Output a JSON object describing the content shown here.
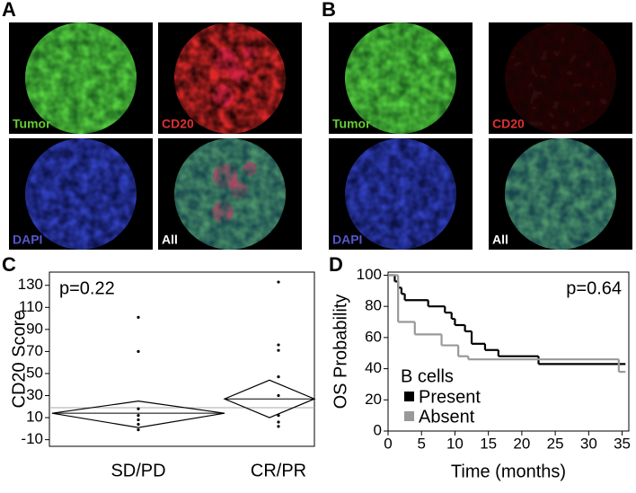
{
  "panels": [
    {
      "label": "A",
      "images": [
        "Tumor",
        "CD20",
        "DAPI",
        "All"
      ]
    },
    {
      "label": "B",
      "images": [
        "Tumor",
        "CD20",
        "DAPI",
        "All"
      ]
    }
  ],
  "chart_data": [
    {
      "type": "diamond",
      "label": "C",
      "annotation": "p=0.22",
      "y_label": "CD20 Score",
      "categories": [
        "SD/PD",
        "CR/PR"
      ],
      "points": [
        [
          101,
          70,
          18,
          12,
          8,
          4,
          -1
        ],
        [
          133,
          76,
          71,
          47,
          30,
          12,
          6,
          2
        ]
      ],
      "mean": [
        14,
        27
      ],
      "ci_low": [
        1,
        10
      ],
      "ci_high": [
        25,
        44
      ],
      "grand_mean": 19,
      "ylim": [
        -16,
        142
      ],
      "yticks": [
        -10,
        10,
        30,
        50,
        70,
        90,
        110,
        130
      ]
    },
    {
      "type": "step",
      "label": "D",
      "annotation": "p=0.64",
      "x_label": "Time (months)",
      "y_label": "OS Probability",
      "legend_title": "B cells",
      "series": [
        {
          "name": "Present",
          "color": "#000000",
          "x": [
            0,
            1,
            1.5,
            2,
            2.5,
            6,
            8.5,
            9.5,
            10,
            11.5,
            12.5,
            14.5,
            16.5,
            22.5
          ],
          "values": [
            100,
            96,
            92,
            88,
            84,
            80,
            76,
            72,
            68,
            64,
            56,
            52,
            48,
            43
          ],
          "followup_end": 35.5
        },
        {
          "name": "Absent",
          "color": "#999999",
          "x": [
            0,
            1.5,
            4,
            8,
            10.5,
            12,
            34.5
          ],
          "values": [
            100,
            70,
            62,
            55,
            48,
            46,
            38
          ],
          "followup_end": 35.5
        }
      ],
      "xlim": [
        0,
        36
      ],
      "xticks": [
        0,
        5,
        10,
        15,
        20,
        25,
        30,
        35
      ],
      "ylim": [
        0,
        102
      ],
      "yticks": [
        0,
        20,
        40,
        60,
        80,
        100
      ]
    }
  ]
}
